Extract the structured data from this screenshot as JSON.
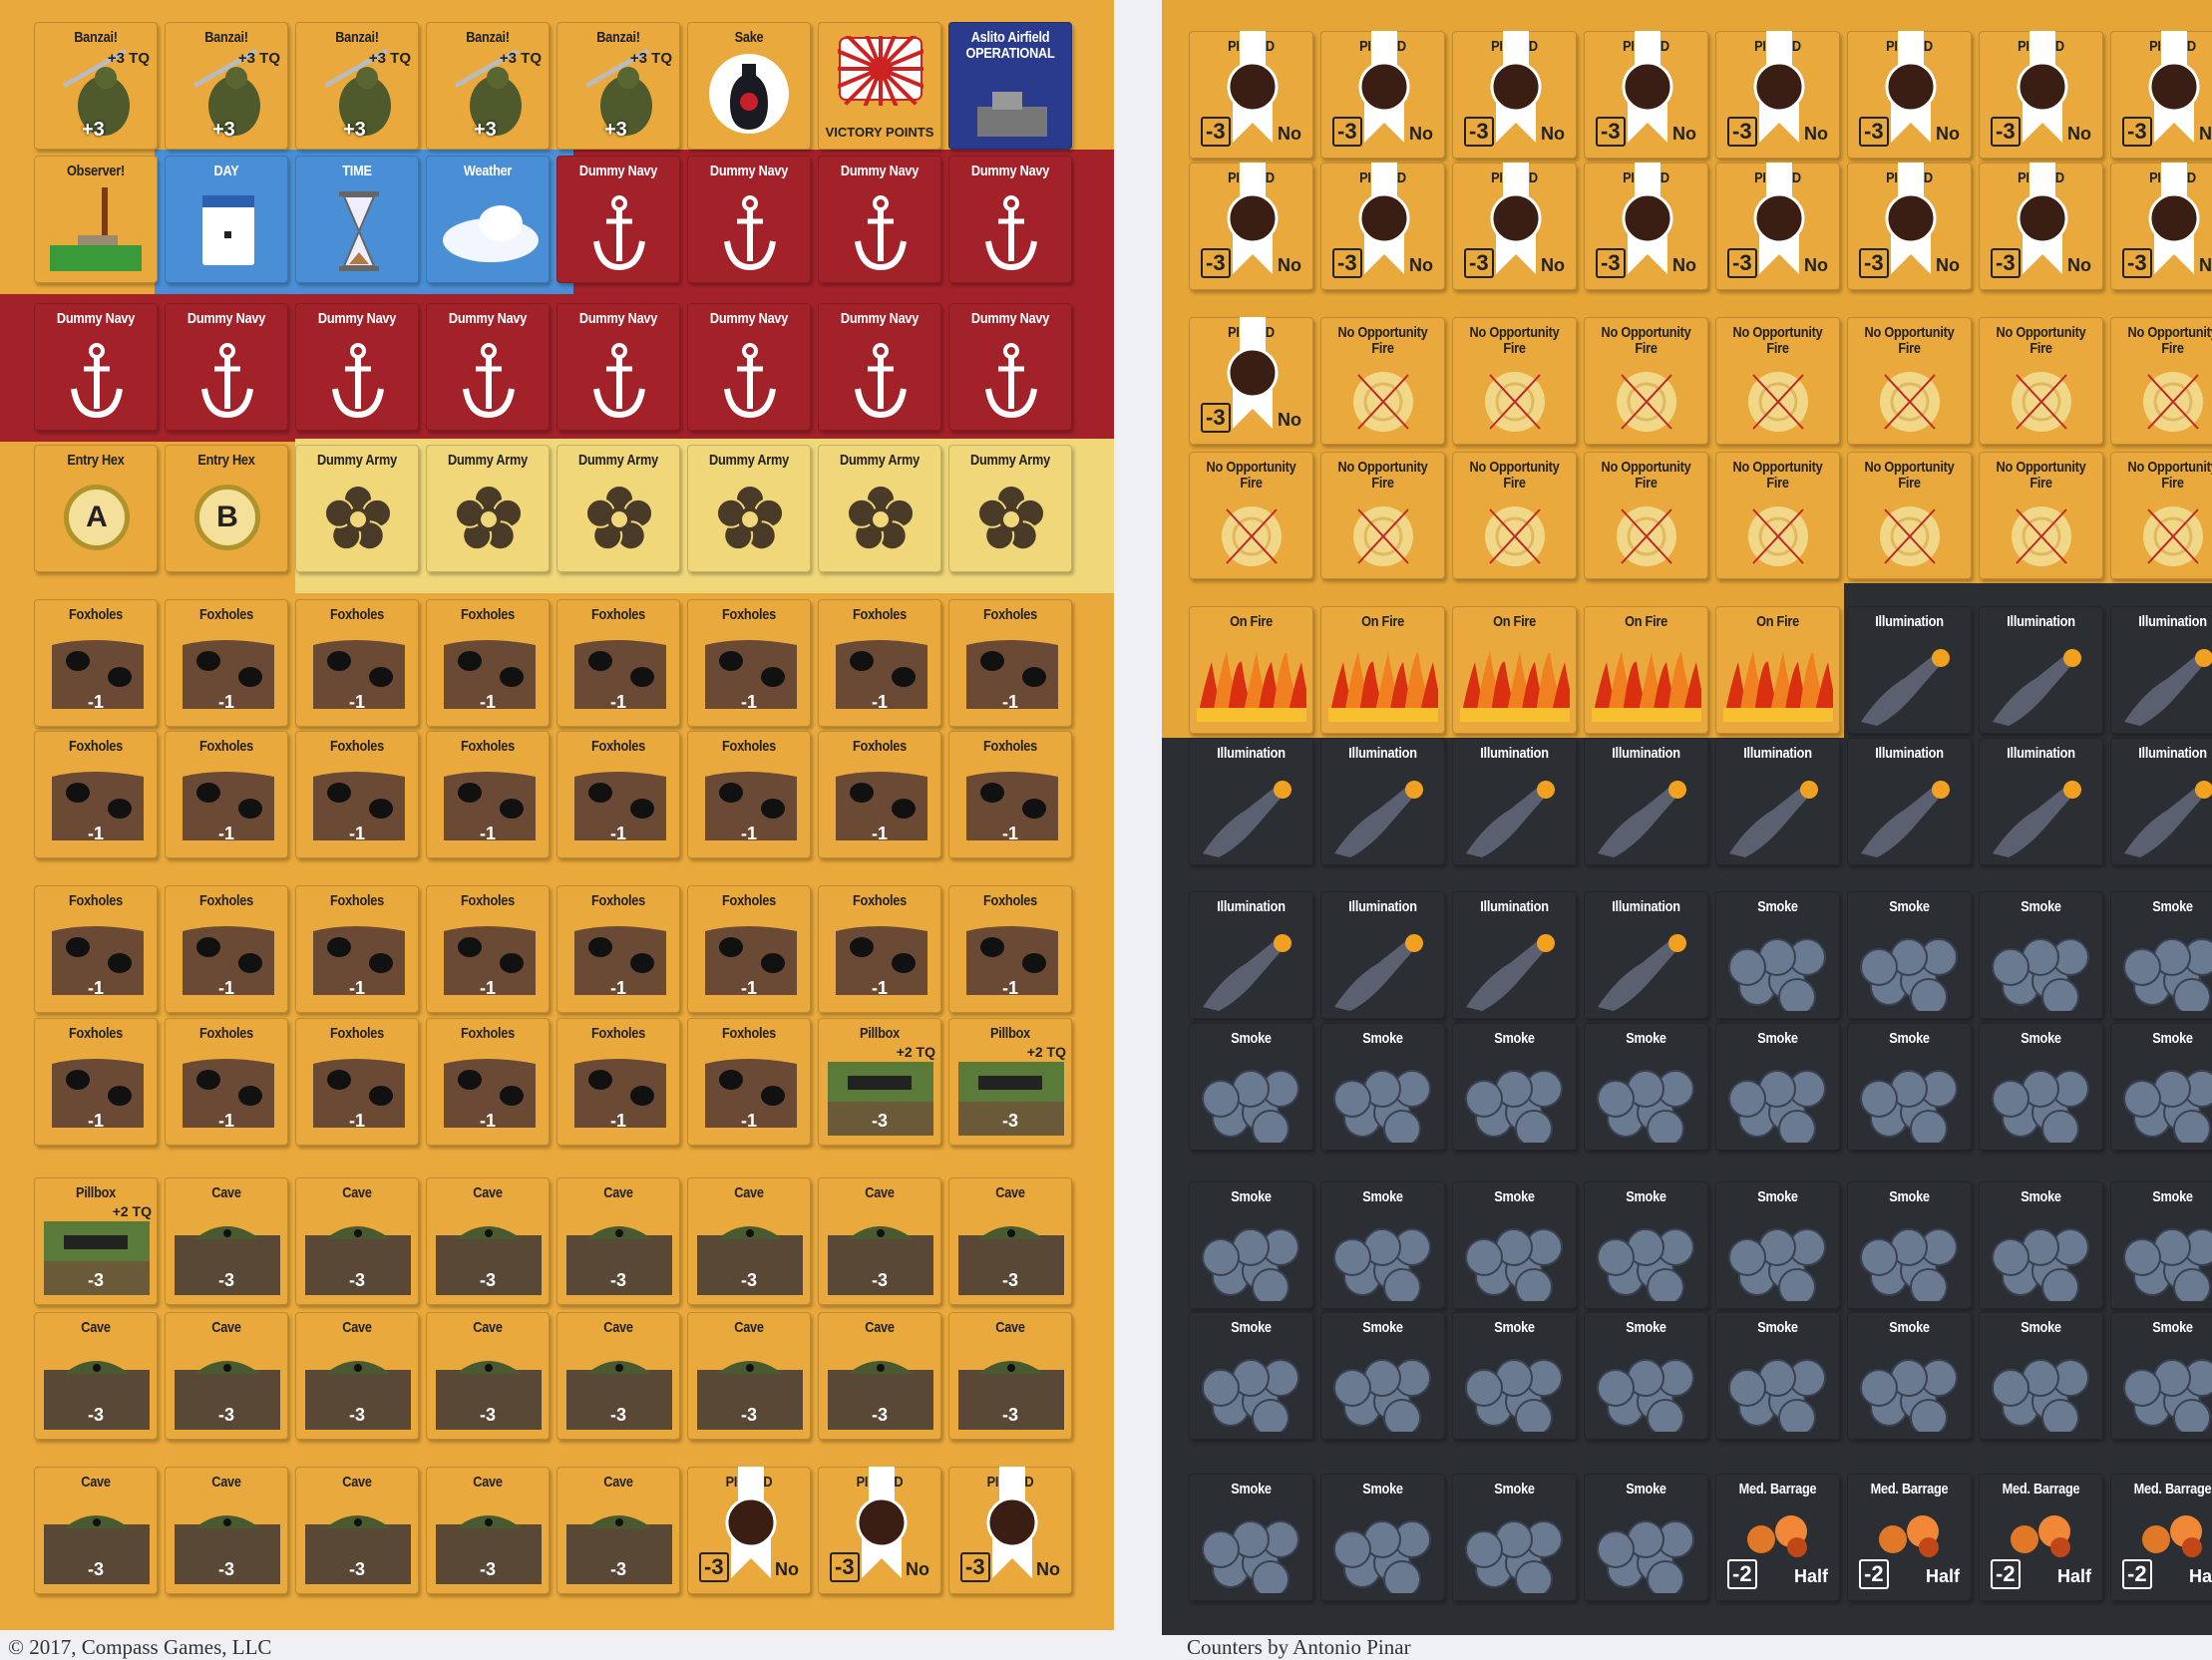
{
  "colors": {
    "orange": "#e9a93c",
    "navy_red": "#a3222a",
    "army_yellow": "#efd77a",
    "blue": "#4a8fd6",
    "dark": "#2b2e33"
  },
  "types": {
    "banzai": {
      "title": "Banzai!",
      "mod": "+3 TQ",
      "value": "+3",
      "icon": "soldier-icon"
    },
    "sake": {
      "title": "Sake",
      "icon": "sake-bottle-icon"
    },
    "victory": {
      "title": "VICTORY POINTS",
      "icon": "rising-sun-flag-icon"
    },
    "airfield": {
      "title": "Aslito Airfield OPERATIONAL",
      "icon": "airfield-icon"
    },
    "observer": {
      "title": "Observer!",
      "icon": "chimney-icon"
    },
    "day": {
      "title": "DAY",
      "icon": "calendar-icon"
    },
    "time": {
      "title": "TIME",
      "icon": "hourglass-icon"
    },
    "weather": {
      "title": "Weather",
      "icon": "cloud-icon"
    },
    "navy": {
      "title": "Dummy Navy",
      "icon": "anchor-icon"
    },
    "entryA": {
      "title": "Entry Hex",
      "value": "A",
      "icon": "hex-marker-icon"
    },
    "entryB": {
      "title": "Entry Hex",
      "value": "B",
      "icon": "hex-marker-icon"
    },
    "army": {
      "title": "Dummy Army",
      "icon": "flower-crest-icon"
    },
    "foxhole": {
      "title": "Foxholes",
      "value": "-1",
      "icon": "foxhole-icon"
    },
    "pillbox": {
      "title": "Pillbox",
      "mod": "+2 TQ",
      "value": "-3",
      "icon": "pillbox-icon"
    },
    "cave": {
      "title": "Cave",
      "value": "-3",
      "icon": "cave-icon"
    },
    "pinned": {
      "title": "PINNED",
      "value": "-3",
      "mod": "No",
      "icon": "ribbon-medal-icon"
    },
    "noop": {
      "title": "No Opportunity Fire",
      "icon": "crossed-target-icon"
    },
    "onfire": {
      "title": "On Fire",
      "icon": "flames-icon"
    },
    "illum": {
      "title": "Illumination",
      "icon": "flare-icon"
    },
    "smoke": {
      "title": "Smoke",
      "icon": "smoke-icon"
    },
    "barrage": {
      "title": "Med. Barrage",
      "value": "-2",
      "mod": "Half",
      "icon": "explosion-icon"
    }
  },
  "left_sheet": {
    "rows": [
      [
        "banzai",
        "banzai",
        "banzai",
        "banzai",
        "banzai",
        "sake",
        "victory",
        "airfield"
      ],
      [
        "observer",
        "day",
        "time",
        "weather",
        "navy",
        "navy",
        "navy",
        "navy"
      ],
      [
        "navy",
        "navy",
        "navy",
        "navy",
        "navy",
        "navy",
        "navy",
        "navy"
      ],
      [
        "entryA",
        "entryB",
        "army",
        "army",
        "army",
        "army",
        "army",
        "army"
      ],
      [
        "foxhole",
        "foxhole",
        "foxhole",
        "foxhole",
        "foxhole",
        "foxhole",
        "foxhole",
        "foxhole"
      ],
      [
        "foxhole",
        "foxhole",
        "foxhole",
        "foxhole",
        "foxhole",
        "foxhole",
        "foxhole",
        "foxhole"
      ],
      [
        "foxhole",
        "foxhole",
        "foxhole",
        "foxhole",
        "foxhole",
        "foxhole",
        "foxhole",
        "foxhole"
      ],
      [
        "foxhole",
        "foxhole",
        "foxhole",
        "foxhole",
        "foxhole",
        "foxhole",
        "pillbox",
        "pillbox"
      ],
      [
        "pillbox",
        "cave",
        "cave",
        "cave",
        "cave",
        "cave",
        "cave",
        "cave"
      ],
      [
        "cave",
        "cave",
        "cave",
        "cave",
        "cave",
        "cave",
        "cave",
        "cave"
      ],
      [
        "cave",
        "cave",
        "cave",
        "cave",
        "cave",
        "pinned",
        "pinned",
        "pinned"
      ]
    ]
  },
  "right_sheet": {
    "rows": [
      [
        "pinned",
        "pinned",
        "pinned",
        "pinned",
        "pinned",
        "pinned",
        "pinned",
        "pinned"
      ],
      [
        "pinned",
        "pinned",
        "pinned",
        "pinned",
        "pinned",
        "pinned",
        "pinned",
        "pinned"
      ],
      [
        "pinned",
        "noop",
        "noop",
        "noop",
        "noop",
        "noop",
        "noop",
        "noop"
      ],
      [
        "noop",
        "noop",
        "noop",
        "noop",
        "noop",
        "noop",
        "noop",
        "noop"
      ],
      [
        "onfire",
        "onfire",
        "onfire",
        "onfire",
        "onfire",
        "illum",
        "illum",
        "illum"
      ],
      [
        "illum",
        "illum",
        "illum",
        "illum",
        "illum",
        "illum",
        "illum",
        "illum"
      ],
      [
        "illum",
        "illum",
        "illum",
        "illum",
        "smoke",
        "smoke",
        "smoke",
        "smoke"
      ],
      [
        "smoke",
        "smoke",
        "smoke",
        "smoke",
        "smoke",
        "smoke",
        "smoke",
        "smoke"
      ],
      [
        "smoke",
        "smoke",
        "smoke",
        "smoke",
        "smoke",
        "smoke",
        "smoke",
        "smoke"
      ],
      [
        "smoke",
        "smoke",
        "smoke",
        "smoke",
        "smoke",
        "smoke",
        "smoke",
        "smoke"
      ],
      [
        "smoke",
        "smoke",
        "smoke",
        "smoke",
        "barrage",
        "barrage",
        "barrage",
        "barrage"
      ]
    ]
  },
  "footer": {
    "copyright": "© 2017, Compass Games, LLC",
    "credit": "Counters by Antonio Pinar"
  }
}
